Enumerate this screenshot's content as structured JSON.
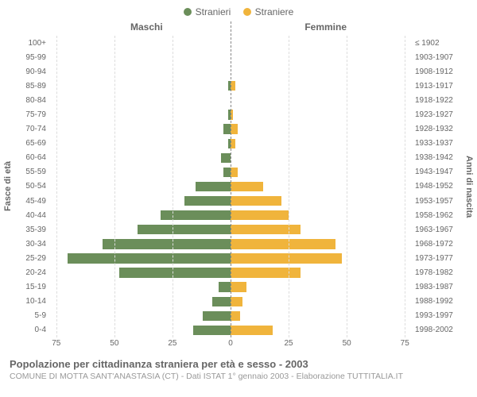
{
  "legend": {
    "male": {
      "label": "Stranieri",
      "color": "#6b8e5a"
    },
    "female": {
      "label": "Straniere",
      "color": "#f0b43c"
    }
  },
  "headers": {
    "male": "Maschi",
    "female": "Femmine"
  },
  "ylabels": {
    "left": "Fasce di età",
    "right": "Anni di nascita"
  },
  "chart": {
    "type": "population-pyramid",
    "xmax_each_side": 78,
    "xticks_left": [
      75,
      50,
      25,
      0
    ],
    "xticks_right": [
      0,
      25,
      50,
      75
    ],
    "grid_color": "#dcdcdc",
    "center_line_color": "#888888",
    "background_color": "#ffffff",
    "male_color": "#6b8e5a",
    "female_color": "#f0b43c",
    "label_fontsize": 10,
    "rows": [
      {
        "age": "100+",
        "year": "≤ 1902",
        "m": 0,
        "f": 0
      },
      {
        "age": "95-99",
        "year": "1903-1907",
        "m": 0,
        "f": 0
      },
      {
        "age": "90-94",
        "year": "1908-1912",
        "m": 0,
        "f": 0
      },
      {
        "age": "85-89",
        "year": "1913-1917",
        "m": 1,
        "f": 2
      },
      {
        "age": "80-84",
        "year": "1918-1922",
        "m": 0,
        "f": 0
      },
      {
        "age": "75-79",
        "year": "1923-1927",
        "m": 1,
        "f": 1
      },
      {
        "age": "70-74",
        "year": "1928-1932",
        "m": 3,
        "f": 3
      },
      {
        "age": "65-69",
        "year": "1933-1937",
        "m": 1,
        "f": 2
      },
      {
        "age": "60-64",
        "year": "1938-1942",
        "m": 4,
        "f": 0
      },
      {
        "age": "55-59",
        "year": "1943-1947",
        "m": 3,
        "f": 3
      },
      {
        "age": "50-54",
        "year": "1948-1952",
        "m": 15,
        "f": 14
      },
      {
        "age": "45-49",
        "year": "1953-1957",
        "m": 20,
        "f": 22
      },
      {
        "age": "40-44",
        "year": "1958-1962",
        "m": 30,
        "f": 25
      },
      {
        "age": "35-39",
        "year": "1963-1967",
        "m": 40,
        "f": 30
      },
      {
        "age": "30-34",
        "year": "1968-1972",
        "m": 55,
        "f": 45
      },
      {
        "age": "25-29",
        "year": "1973-1977",
        "m": 70,
        "f": 48
      },
      {
        "age": "20-24",
        "year": "1978-1982",
        "m": 48,
        "f": 30
      },
      {
        "age": "15-19",
        "year": "1983-1987",
        "m": 5,
        "f": 7
      },
      {
        "age": "10-14",
        "year": "1988-1992",
        "m": 8,
        "f": 5
      },
      {
        "age": "5-9",
        "year": "1993-1997",
        "m": 12,
        "f": 4
      },
      {
        "age": "0-4",
        "year": "1998-2002",
        "m": 16,
        "f": 18
      }
    ]
  },
  "footer": {
    "title": "Popolazione per cittadinanza straniera per età e sesso - 2003",
    "subtitle": "COMUNE DI MOTTA SANT'ANASTASIA (CT) - Dati ISTAT 1° gennaio 2003 - Elaborazione TUTTITALIA.IT"
  }
}
